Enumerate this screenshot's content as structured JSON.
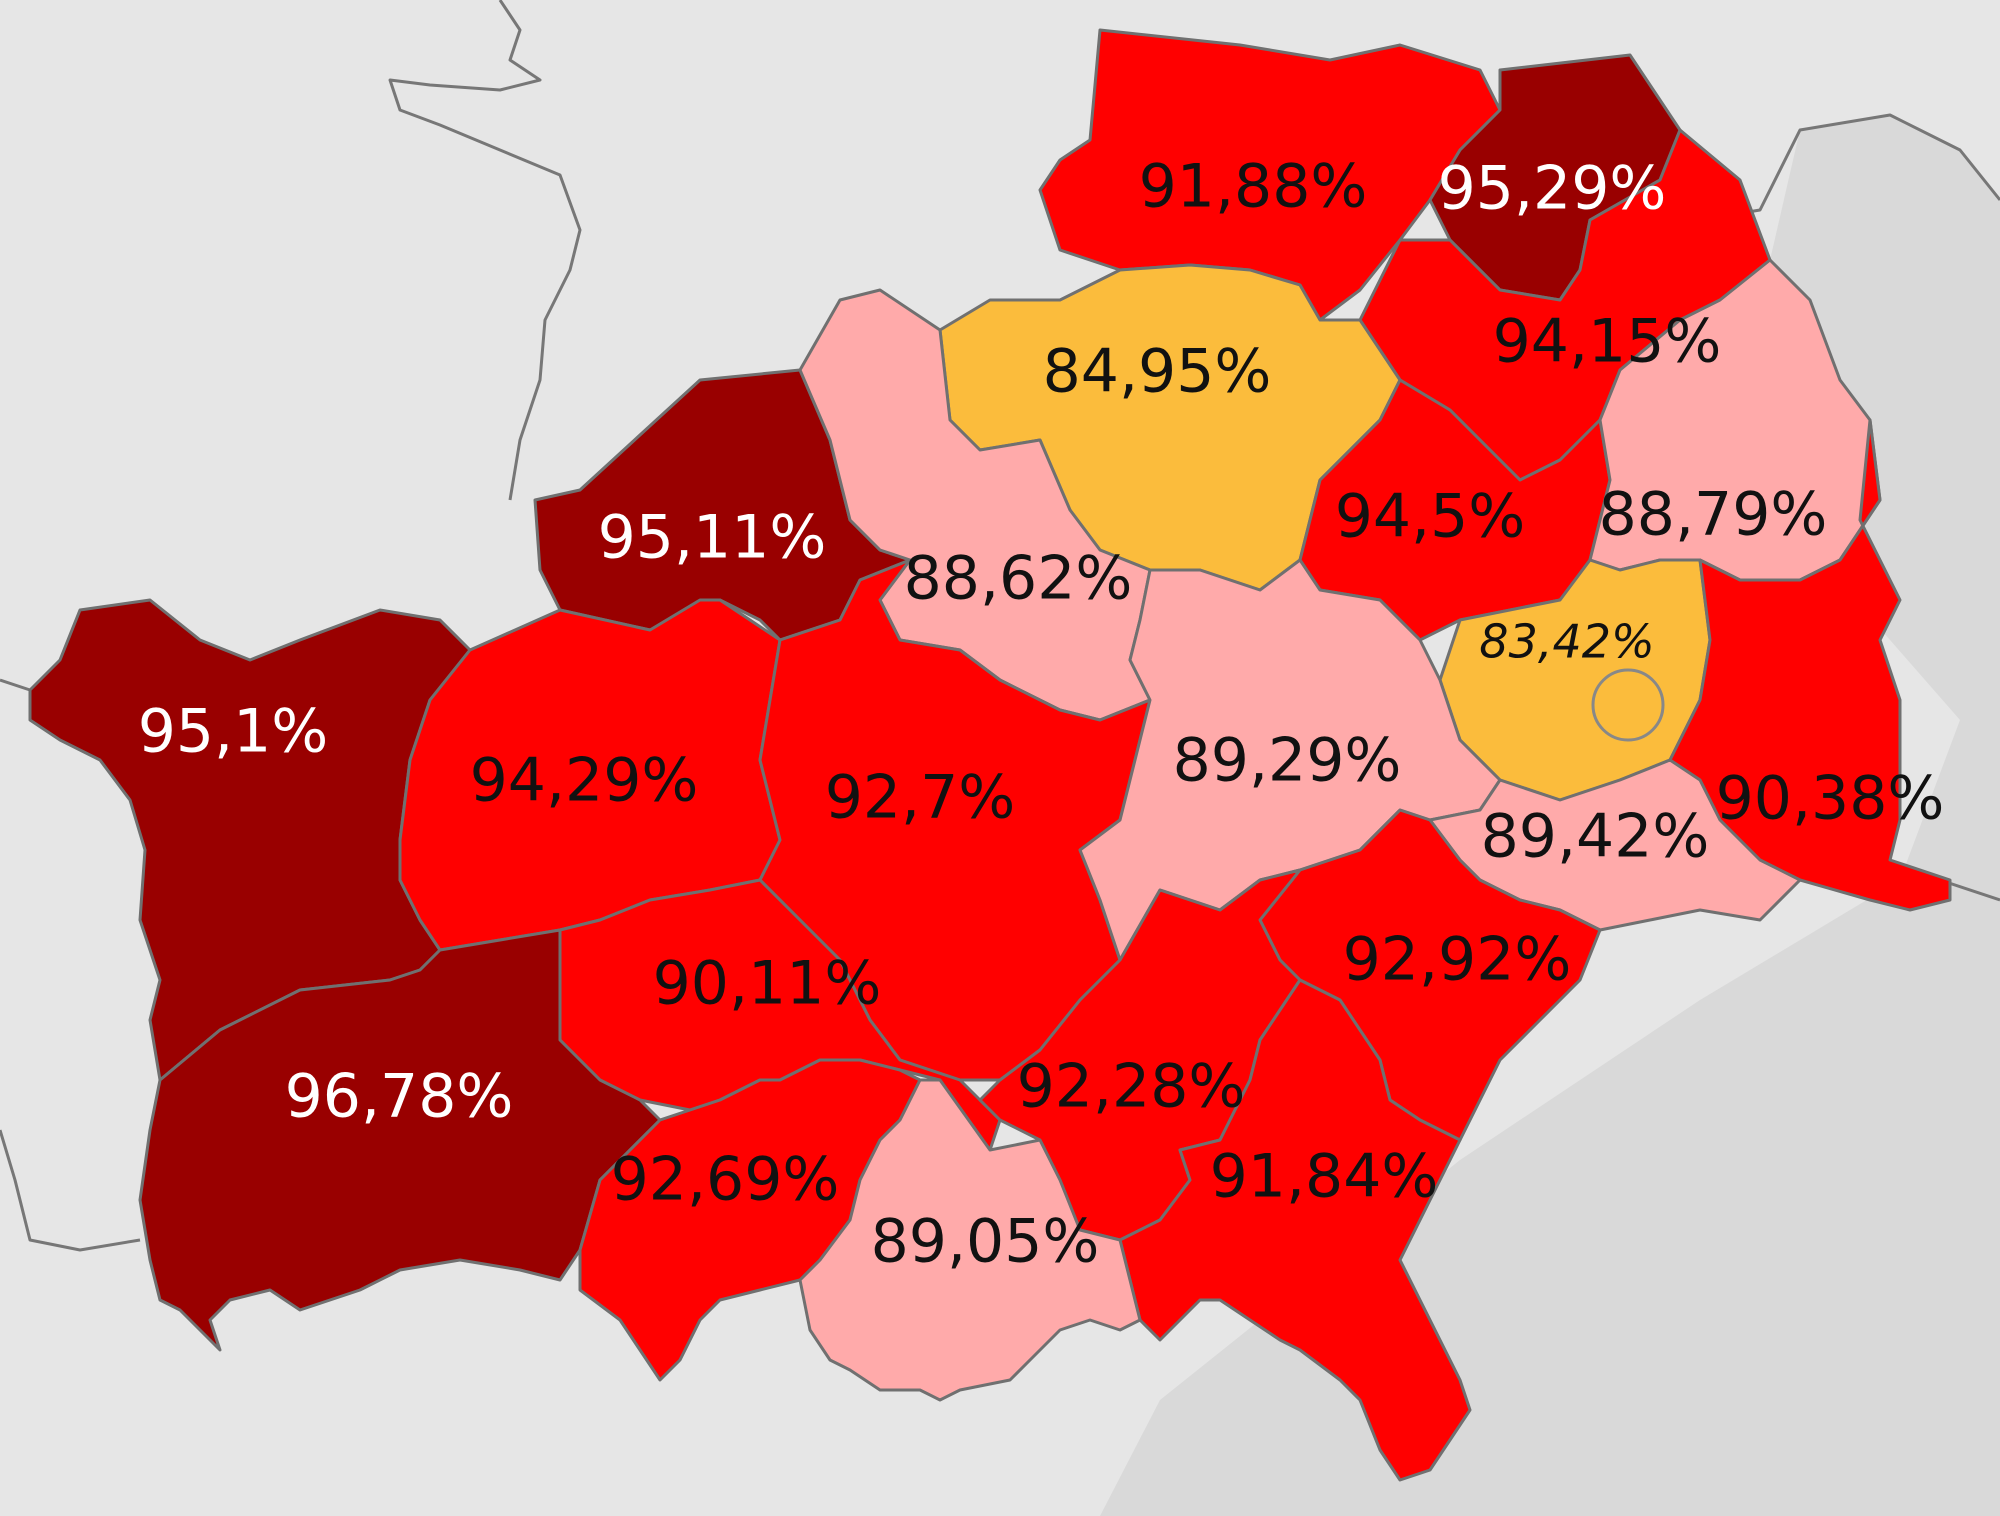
{
  "colors": {
    "background_west": "#e6e6e6",
    "background_east": "#d9d9d9",
    "class_dark": "#990000",
    "class_red": "#ff0000",
    "class_pink": "#ffaaaa",
    "class_orange": "#fbbc3c",
    "label_light": "#ffffff",
    "label_dark": "#111111",
    "border": "#777777"
  },
  "regions": [
    {
      "id": "r1",
      "label": "91,88%",
      "value": 91.88,
      "class": "red"
    },
    {
      "id": "r2",
      "label": "95,29%",
      "value": 95.29,
      "class": "dark"
    },
    {
      "id": "r3",
      "label": "94,15%",
      "value": 94.15,
      "class": "red"
    },
    {
      "id": "r4",
      "label": "84,95%",
      "value": 84.95,
      "class": "orange"
    },
    {
      "id": "r5",
      "label": "94,5%",
      "value": 94.5,
      "class": "red"
    },
    {
      "id": "r6",
      "label": "88,79%",
      "value": 88.79,
      "class": "pink"
    },
    {
      "id": "r7",
      "label": "95,11%",
      "value": 95.11,
      "class": "dark"
    },
    {
      "id": "r8",
      "label": "88,62%",
      "value": 88.62,
      "class": "pink"
    },
    {
      "id": "r9",
      "label": "83,42%",
      "value": 83.42,
      "class": "orange"
    },
    {
      "id": "r10",
      "label": "95,1%",
      "value": 95.1,
      "class": "dark"
    },
    {
      "id": "r11",
      "label": "94,29%",
      "value": 94.29,
      "class": "red"
    },
    {
      "id": "r12",
      "label": "92,7%",
      "value": 92.7,
      "class": "red"
    },
    {
      "id": "r13",
      "label": "89,29%",
      "value": 89.29,
      "class": "pink"
    },
    {
      "id": "r14",
      "label": "90,38%",
      "value": 90.38,
      "class": "red"
    },
    {
      "id": "r15",
      "label": "89,42%",
      "value": 89.42,
      "class": "pink"
    },
    {
      "id": "r16",
      "label": "90,11%",
      "value": 90.11,
      "class": "red"
    },
    {
      "id": "r17",
      "label": "92,92%",
      "value": 92.92,
      "class": "red"
    },
    {
      "id": "r18",
      "label": "96,78%",
      "value": 96.78,
      "class": "dark"
    },
    {
      "id": "r19",
      "label": "92,28%",
      "value": 92.28,
      "class": "red"
    },
    {
      "id": "r20",
      "label": "92,69%",
      "value": 92.69,
      "class": "red"
    },
    {
      "id": "r21",
      "label": "91,84%",
      "value": 91.84,
      "class": "red"
    },
    {
      "id": "r22",
      "label": "89,05%",
      "value": 89.05,
      "class": "pink"
    }
  ]
}
